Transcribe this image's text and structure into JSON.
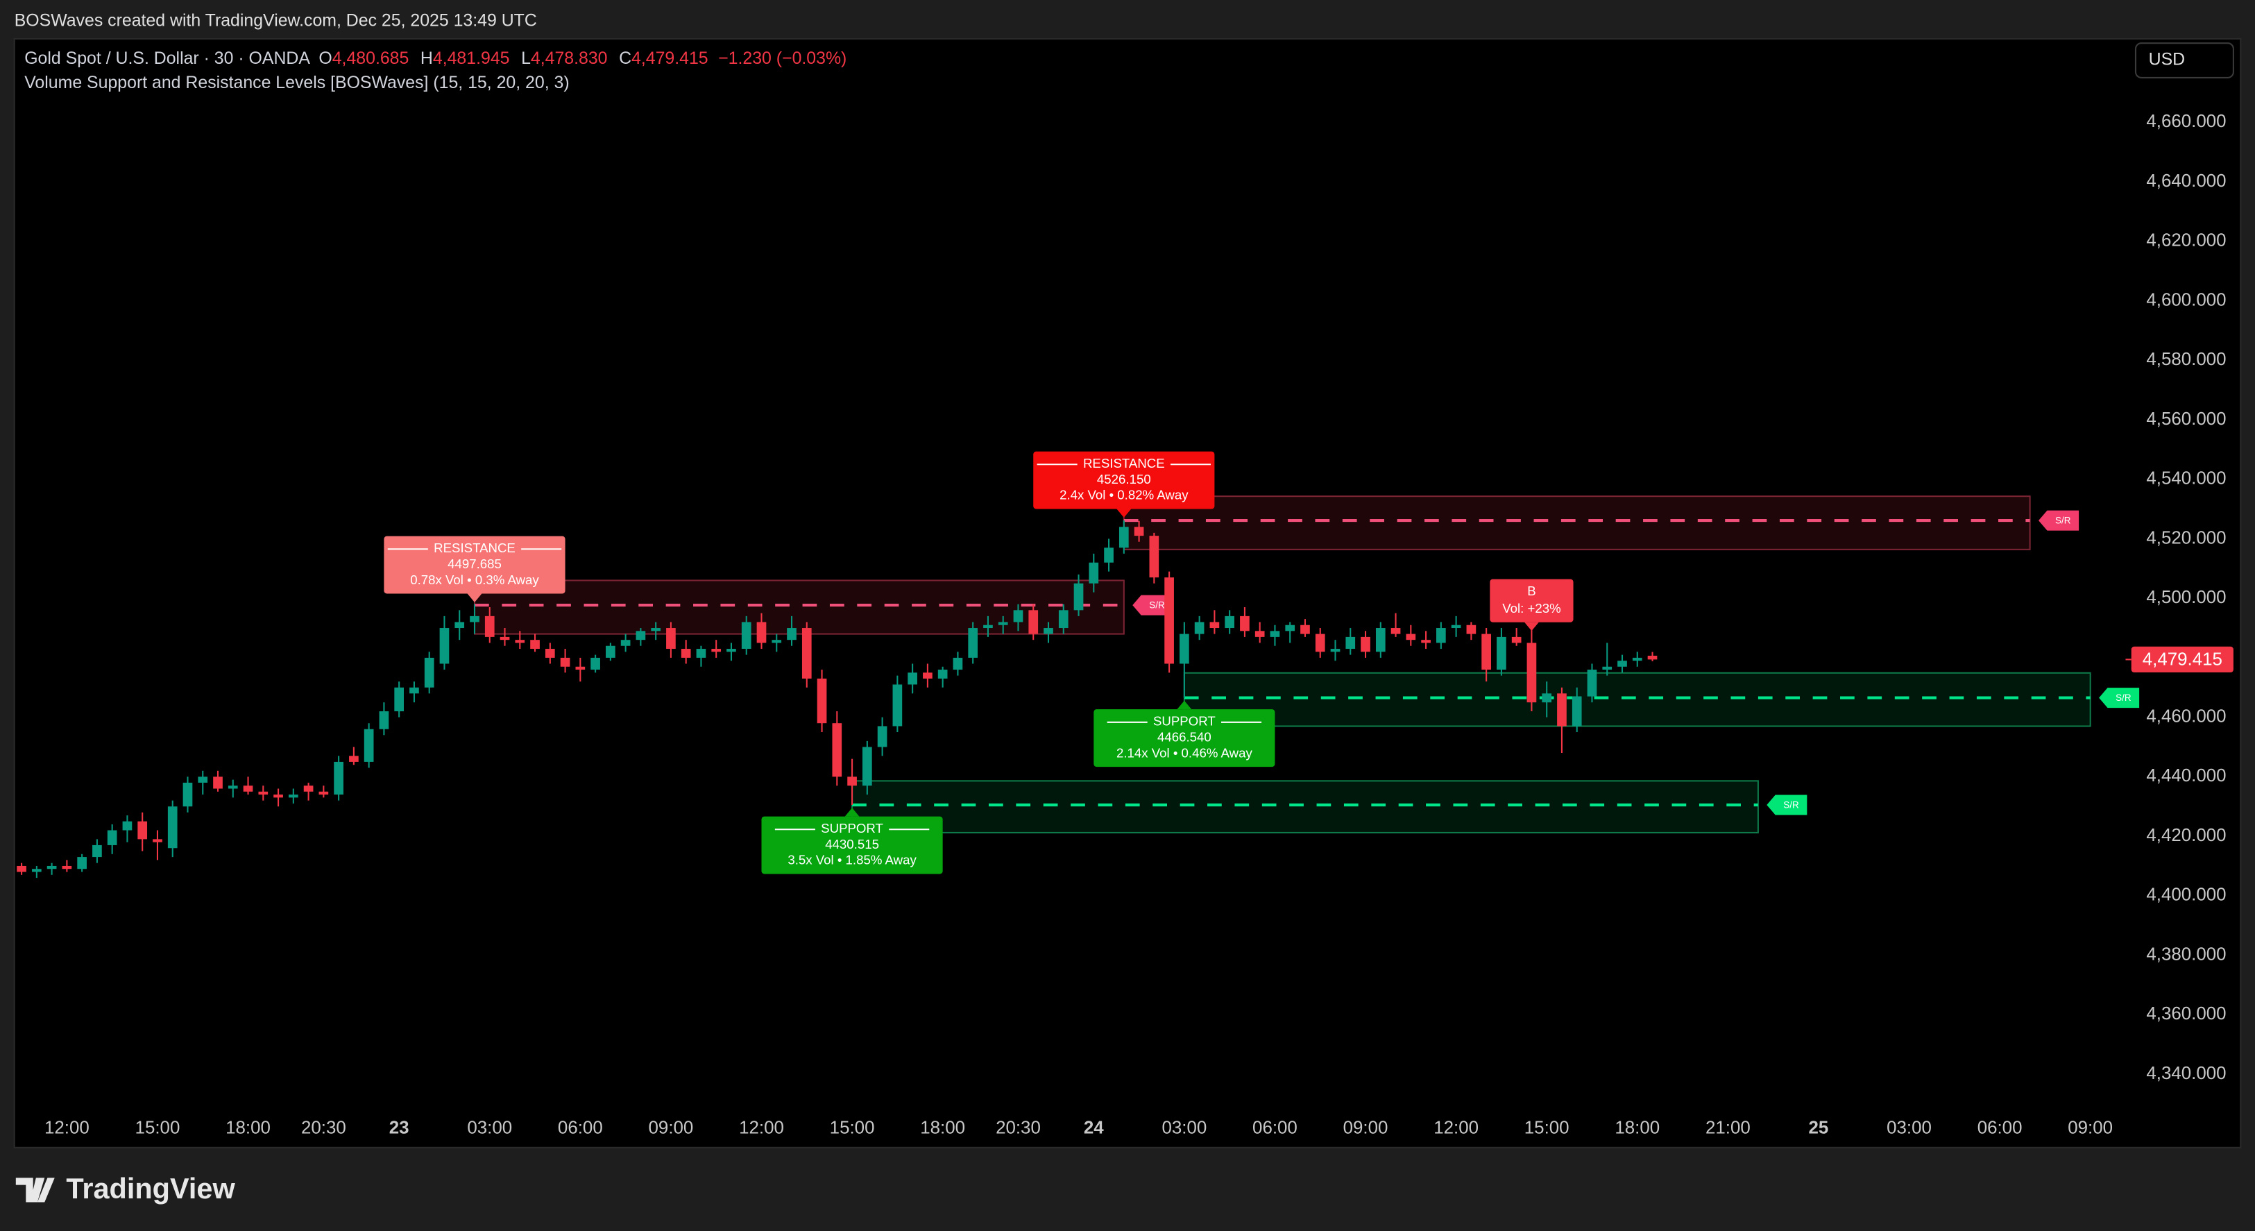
{
  "header": {
    "attribution": "BOSWaves created with TradingView.com, Dec 25, 2025 13:49 UTC",
    "symbol": "Gold Spot / U.S. Dollar · 30 · OANDA",
    "ohlc": [
      {
        "key": "O",
        "value": "4,480.685"
      },
      {
        "key": "H",
        "value": "4,481.945"
      },
      {
        "key": "L",
        "value": "4,478.830"
      },
      {
        "key": "C",
        "value": "4,479.415"
      }
    ],
    "change": "−1.230 (−0.03%)",
    "indicator": "Volume Support and Resistance Levels [BOSWaves] (15, 15, 20, 20, 3)",
    "currency": "USD",
    "logo": "TradingView"
  },
  "chart_data": {
    "type": "candlestick",
    "up_color": "#089981",
    "down_color": "#f23645",
    "grid": false,
    "categories": [
      null,
      null,
      null,
      "12:00",
      null,
      null,
      null,
      null,
      null,
      "15:00",
      null,
      null,
      null,
      null,
      null,
      "18:00",
      null,
      null,
      null,
      null,
      "20:30",
      null,
      null,
      null,
      null,
      "23",
      null,
      null,
      null,
      null,
      null,
      "03:00",
      null,
      null,
      null,
      null,
      null,
      "06:00",
      null,
      null,
      null,
      null,
      null,
      "09:00",
      null,
      null,
      null,
      null,
      null,
      "12:00",
      null,
      null,
      null,
      null,
      null,
      "15:00",
      null,
      null,
      null,
      null,
      null,
      "18:00",
      null,
      null,
      null,
      null,
      "20:30",
      null,
      null,
      null,
      null,
      "24",
      null,
      null,
      null,
      null,
      null,
      "03:00",
      null,
      null,
      null,
      null,
      null,
      "06:00",
      null,
      null,
      null,
      null,
      null,
      "09:00",
      null,
      null,
      null,
      null,
      null,
      "12:00",
      null,
      null,
      null,
      null,
      null,
      "15:00",
      null,
      null,
      null,
      null,
      null,
      "18:00",
      null,
      null,
      null,
      null,
      null,
      "21:00",
      null,
      null,
      null,
      null,
      null,
      "25",
      null,
      null,
      null,
      null,
      null,
      "03:00",
      null,
      null,
      null,
      null,
      null,
      "06:00",
      null,
      null,
      null,
      null,
      null,
      "09:00",
      null,
      null
    ],
    "open": [
      4410,
      4408,
      4409,
      4410,
      4409,
      4413,
      4417,
      4422,
      4425,
      4419,
      4416,
      4430,
      4438,
      4440,
      4436,
      4437,
      4435,
      4434,
      4433,
      4437,
      4435,
      4434,
      4447,
      4445,
      4456,
      4462,
      4468,
      4470,
      4478,
      4490,
      4492,
      4494,
      4487,
      4486,
      4486,
      4483,
      4480,
      4477,
      4476,
      4480,
      4484,
      4486,
      4489,
      4490,
      4483,
      4480,
      4483,
      4482,
      4483,
      4492,
      4485,
      4486,
      4490,
      4473,
      4458,
      4440,
      4437,
      4450,
      4457,
      4471,
      4475,
      4473,
      4476,
      4480,
      4490,
      4491,
      4492,
      4496,
      4488,
      4490,
      4496,
      4505,
      4512,
      4517,
      4524,
      4521,
      4507,
      4478,
      4488,
      4492,
      4490,
      4494,
      4489,
      4487,
      4489,
      4491,
      4488,
      4482,
      4483,
      4487,
      4482,
      4490,
      4488,
      4486,
      4485,
      4490,
      4491,
      4488,
      4476,
      4487,
      4485,
      4465,
      4468,
      4457,
      4467,
      4476,
      4477,
      4479,
      4480.685,
      null,
      null,
      null,
      null,
      null,
      null,
      null,
      null,
      null,
      null,
      null,
      null,
      null,
      null,
      null,
      null,
      null,
      null,
      null,
      null,
      null,
      null,
      null,
      null,
      null,
      null,
      null,
      null,
      null,
      null,
      null
    ],
    "high": [
      4411,
      4410,
      4411,
      4412,
      4414,
      4419,
      4424,
      4427,
      4428,
      4422,
      4432,
      4440,
      4442,
      4442,
      4439,
      4440,
      4437,
      4436,
      4436,
      4438,
      4437,
      4447,
      4450,
      4458,
      4465,
      4472,
      4472,
      4482,
      4494,
      4496,
      4498,
      4497,
      4490,
      4489,
      4488,
      4485,
      4483,
      4480,
      4481,
      4485,
      4488,
      4490,
      4492,
      4492,
      4486,
      4484,
      4486,
      4485,
      4494,
      4495,
      4488,
      4494,
      4492,
      4476,
      4462,
      4446,
      4452,
      4460,
      4474,
      4478,
      4478,
      4477,
      4482,
      4492,
      4494,
      4494,
      4498,
      4498,
      4492,
      4498,
      4508,
      4515,
      4520,
      4526.15,
      4526,
      4522,
      4509,
      4492,
      4494,
      4496,
      4496,
      4497,
      4492,
      4491,
      4492,
      4493,
      4490,
      4486,
      4490,
      4489,
      4492,
      4495,
      4491,
      4489,
      4492,
      4494,
      4492,
      4490,
      4490,
      4490,
      4490,
      4472,
      4470,
      4470,
      4478,
      4485,
      4481,
      4482,
      4481.945,
      null,
      null,
      null,
      null,
      null,
      null,
      null,
      null,
      null,
      null,
      null,
      null,
      null,
      null,
      null,
      null,
      null,
      null,
      null,
      null,
      null,
      null,
      null,
      null,
      null,
      null,
      null,
      null,
      null,
      null,
      null
    ],
    "low": [
      4407,
      4406,
      4407,
      4408,
      4408,
      4411,
      4414,
      4418,
      4415,
      4412,
      4413,
      4428,
      4434,
      4435,
      4433,
      4434,
      4432,
      4430,
      4431,
      4432,
      4433,
      4432,
      4444,
      4443,
      4454,
      4460,
      4465,
      4468,
      4476,
      4486,
      4488,
      4485,
      4484,
      4483,
      4482,
      4478,
      4475,
      4472,
      4475,
      4479,
      4482,
      4484,
      4486,
      4480,
      4478,
      4477,
      4480,
      4479,
      4481,
      4483,
      4482,
      4484,
      4470,
      4455,
      4437,
      4430.515,
      4434,
      4447,
      4455,
      4468,
      4470,
      4470,
      4474,
      4478,
      4487,
      4488,
      4489,
      4486,
      4485,
      4488,
      4494,
      4502,
      4509,
      4515,
      4519,
      4505,
      4475,
      4466.54,
      4486,
      4488,
      4488,
      4487,
      4485,
      4484,
      4485,
      4487,
      4480,
      4479,
      4481,
      4480,
      4480,
      4487,
      4484,
      4483,
      4483,
      4487,
      4486,
      4472,
      4474,
      4484,
      4462,
      4460,
      4448,
      4455,
      4465,
      4474,
      4475,
      4477,
      4478.83,
      null,
      null,
      null,
      null,
      null,
      null,
      null,
      null,
      null,
      null,
      null,
      null,
      null,
      null,
      null,
      null,
      null,
      null,
      null,
      null,
      null,
      null,
      null,
      null,
      null,
      null,
      null,
      null,
      null,
      null,
      null
    ],
    "close": [
      4408,
      4409,
      4410,
      4409,
      4413,
      4417,
      4422,
      4425,
      4419,
      4418,
      4430,
      4438,
      4440,
      4436,
      4437,
      4435,
      4434,
      4433,
      4434,
      4435,
      4434,
      4445,
      4445,
      4456,
      4462,
      4470,
      4470,
      4480,
      4490,
      4492,
      4494,
      4487,
      4486,
      4485,
      4483,
      4480,
      4477,
      4476,
      4480,
      4484,
      4486,
      4489,
      4490,
      4483,
      4480,
      4483,
      4482,
      4483,
      4492,
      4485,
      4486,
      4490,
      4473,
      4458,
      4440,
      4437,
      4450,
      4457,
      4471,
      4475,
      4473,
      4476,
      4480,
      4490,
      4491,
      4492,
      4496,
      4488,
      4490,
      4496,
      4505,
      4512,
      4517,
      4524,
      4521,
      4507,
      4478,
      4488,
      4492,
      4490,
      4494,
      4489,
      4487,
      4489,
      4491,
      4488,
      4482,
      4483,
      4487,
      4482,
      4490,
      4488,
      4486,
      4485,
      4490,
      4491,
      4488,
      4476,
      4487,
      4485,
      4465,
      4468,
      4457,
      4467,
      4476,
      4477,
      4479,
      4480,
      4479.415,
      null,
      null,
      null,
      null,
      null,
      null,
      null,
      null,
      null,
      null,
      null,
      null,
      null,
      null,
      null,
      null,
      null,
      null,
      null,
      null,
      null,
      null,
      null,
      null,
      null,
      null,
      null,
      null,
      null,
      null,
      null
    ],
    "ylim": [
      4315.8,
      4687.6
    ],
    "yticks": [
      {
        "value": 4340,
        "label": "4,340.000"
      },
      {
        "value": 4360,
        "label": "4,360.000"
      },
      {
        "value": 4380,
        "label": "4,380.000"
      },
      {
        "value": 4400,
        "label": "4,400.000"
      },
      {
        "value": 4420,
        "label": "4,420.000"
      },
      {
        "value": 4440,
        "label": "4,440.000"
      },
      {
        "value": 4460,
        "label": "4,460.000"
      },
      {
        "value": 4480,
        "label": "4,480.000"
      },
      {
        "value": 4500,
        "label": "4,500.000"
      },
      {
        "value": 4520,
        "label": "4,520.000"
      },
      {
        "value": 4540,
        "label": "4,540.000"
      },
      {
        "value": 4560,
        "label": "4,560.000"
      },
      {
        "value": 4580,
        "label": "4,580.000"
      },
      {
        "value": 4600,
        "label": "4,600.000"
      },
      {
        "value": 4620,
        "label": "4,620.000"
      },
      {
        "value": 4640,
        "label": "4,640.000"
      },
      {
        "value": 4660,
        "label": "4,660.000"
      }
    ],
    "last_price": {
      "value": 4479.415,
      "label": "4,479.415",
      "color": "#f23645"
    },
    "styles": {
      "RESISTANCE": {
        "zone_fill": "rgba(242,54,69,0.13)",
        "zone_stroke": "#7a2433",
        "line_color": "#f0507a",
        "tag_color": "#f23c6b"
      },
      "SUPPORT": {
        "zone_fill": "rgba(0,230,118,0.10)",
        "zone_stroke": "#0e7a4a",
        "line_color": "#00e68a",
        "tag_color": "#00e676"
      }
    },
    "levels": [
      {
        "kind": "RESISTANCE",
        "price": 4497.685,
        "detail": "0.78x Vol • 0.3% Away",
        "zone": [
          4488,
          4506
        ],
        "from": 30,
        "to": 73,
        "label_color": "#f77474",
        "tag": "S/R"
      },
      {
        "kind": "RESISTANCE",
        "price": {
          "value": 4526.15,
          "label": "4526.150"
        },
        "detail": "2.4x Vol • 0.82% Away",
        "zone": [
          4516.4,
          4534.3
        ],
        "from": 73,
        "to": 133,
        "label_color": "#f50d0d",
        "tag": "S/R"
      },
      {
        "kind": "SUPPORT",
        "price": 4430.515,
        "detail": "3.5x Vol • 1.85% Away",
        "zone": [
          4421.2,
          4438.6
        ],
        "from": 55,
        "to": 115,
        "label_color": "#07a60e",
        "tag": "S/R"
      },
      {
        "kind": "SUPPORT",
        "price": {
          "value": 4466.54,
          "label": "4466.540"
        },
        "detail": "2.14x Vol • 0.46% Away",
        "zone": [
          4457,
          4474.9
        ],
        "from": 77,
        "to": 137,
        "label_color": "#07a60e",
        "tag": "S/R"
      }
    ],
    "signals": [
      {
        "text": "B",
        "detail": "Vol: +23%",
        "at": 100,
        "color": "#f23645"
      }
    ]
  }
}
